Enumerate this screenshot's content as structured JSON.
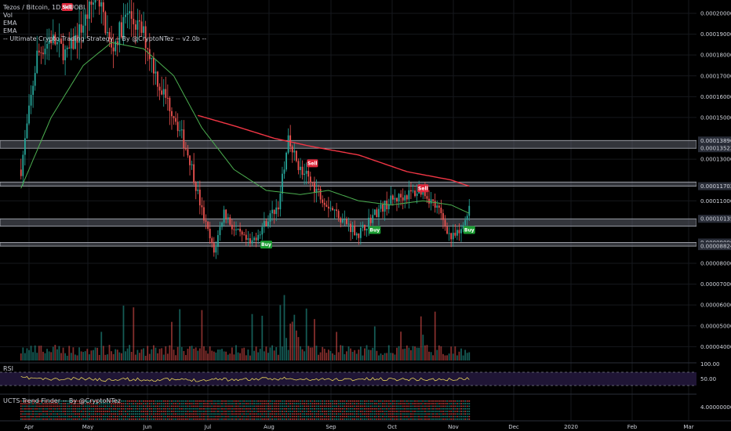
{
  "legend": {
    "symbol": "Tezos / Bitcoin, 1D, HUOBI",
    "vol": "Vol",
    "ema1": "EMA",
    "ema2": "EMA",
    "strategy": "-- Ultimate Crypto Trading Strategy -- By @CryptoNTez -- v2.0b --"
  },
  "rsi_label": "RSI",
  "trend_label": "UCTS Trend Finder -- By @CryptoNTez",
  "colors": {
    "up": "#26a69a",
    "down": "#ef5350",
    "ema_fast": "#4caf50",
    "ema_slow": "#f23645",
    "rsi": "#e7d25a",
    "rsi_band": "#1f1535",
    "zone": "#5d606b",
    "buy": "#1b9e32",
    "sell": "#e0283c"
  },
  "chart_data": {
    "type": "candlestick",
    "x_axis_labels": [
      "Apr",
      "May",
      "Jun",
      "Jul",
      "Aug",
      "Sep",
      "Oct",
      "Nov",
      "Dec",
      "2020",
      "Feb",
      "Mar"
    ],
    "y_axis_labels": [
      "0.00020000",
      "0.00019000",
      "0.00018000",
      "0.00017000",
      "0.00016000",
      "0.00015000",
      "0.00013896",
      "0.00013522",
      "0.00013000",
      "0.00011702",
      "0.00011000",
      "0.00010135",
      "0.00009000",
      "0.00008824",
      "0.00008000",
      "0.00007000",
      "0.00006000",
      "0.00005000",
      "0.00004000"
    ],
    "y_range": [
      3.5e-05,
      0.000205
    ],
    "price_path": [
      {
        "date": "Mar 28",
        "price": 0.000125
      },
      {
        "date": "Apr 5",
        "price": 0.00018
      },
      {
        "date": "Apr 12",
        "price": 0.000188
      },
      {
        "date": "Apr 20",
        "price": 0.00018
      },
      {
        "date": "Apr 28",
        "price": 0.000195
      },
      {
        "date": "May 5",
        "price": 0.00021
      },
      {
        "date": "May 12",
        "price": 0.000182
      },
      {
        "date": "May 20",
        "price": 0.0002
      },
      {
        "date": "May 28",
        "price": 0.00019
      },
      {
        "date": "Jun 5",
        "price": 0.000165
      },
      {
        "date": "Jun 12",
        "price": 0.000152
      },
      {
        "date": "Jun 20",
        "price": 0.00013
      },
      {
        "date": "Jun 26",
        "price": 0.000105
      },
      {
        "date": "Jul 2",
        "price": 8.5e-05
      },
      {
        "date": "Jul 7",
        "price": 0.000105
      },
      {
        "date": "Jul 12",
        "price": 9.6e-05
      },
      {
        "date": "Jul 20",
        "price": 8.9e-05
      },
      {
        "date": "Jul 28",
        "price": 0.0001
      },
      {
        "date": "Aug 3",
        "price": 0.000108
      },
      {
        "date": "Aug 8",
        "price": 0.000138
      },
      {
        "date": "Aug 14",
        "price": 0.000125
      },
      {
        "date": "Aug 20",
        "price": 0.000118
      },
      {
        "date": "Aug 28",
        "price": 0.000108
      },
      {
        "date": "Sep 5",
        "price": 0.0001
      },
      {
        "date": "Sep 12",
        "price": 9.4e-05
      },
      {
        "date": "Sep 20",
        "price": 0.000104
      },
      {
        "date": "Sep 28",
        "price": 0.00011
      },
      {
        "date": "Oct 6",
        "price": 0.000113
      },
      {
        "date": "Oct 14",
        "price": 0.000115
      },
      {
        "date": "Oct 22",
        "price": 0.000105
      },
      {
        "date": "Oct 28",
        "price": 9.2e-05
      },
      {
        "date": "Nov 2",
        "price": 9.5e-05
      },
      {
        "date": "Nov 6",
        "price": 0.000108
      }
    ],
    "ema_fast": [
      {
        "date": "Mar 28",
        "price": 0.000116
      },
      {
        "date": "Apr 12",
        "price": 0.00015
      },
      {
        "date": "Apr 28",
        "price": 0.000175
      },
      {
        "date": "May 12",
        "price": 0.000186
      },
      {
        "date": "May 28",
        "price": 0.000183
      },
      {
        "date": "Jun 12",
        "price": 0.00017
      },
      {
        "date": "Jun 26",
        "price": 0.000145
      },
      {
        "date": "Jul 12",
        "price": 0.000125
      },
      {
        "date": "Jul 28",
        "price": 0.000115
      },
      {
        "date": "Aug 14",
        "price": 0.000113
      },
      {
        "date": "Aug 28",
        "price": 0.000115
      },
      {
        "date": "Sep 12",
        "price": 0.00011
      },
      {
        "date": "Sep 28",
        "price": 0.000108
      },
      {
        "date": "Oct 14",
        "price": 0.00011
      },
      {
        "date": "Oct 28",
        "price": 0.000108
      },
      {
        "date": "Nov 6",
        "price": 0.000104
      }
    ],
    "ema_slow": [
      {
        "date": "Jun 24",
        "price": 0.000151
      },
      {
        "date": "Jul 12",
        "price": 0.000146
      },
      {
        "date": "Aug 1",
        "price": 0.00014
      },
      {
        "date": "Aug 20",
        "price": 0.000136
      },
      {
        "date": "Sep 12",
        "price": 0.000132
      },
      {
        "date": "Oct 6",
        "price": 0.000124
      },
      {
        "date": "Oct 28",
        "price": 0.00012
      },
      {
        "date": "Nov 6",
        "price": 0.000117
      }
    ],
    "zones": [
      {
        "top": 0.00013896,
        "bottom": 0.00013522
      },
      {
        "top": 0.00011902,
        "bottom": 0.00011702
      },
      {
        "top": 0.00010135,
        "bottom": 9.78e-05
      },
      {
        "top": 9e-05,
        "bottom": 8.824e-05
      }
    ],
    "signals": [
      {
        "type": "sell",
        "label": "Sell",
        "date": "Apr 20",
        "price": 0.000203
      },
      {
        "type": "buy",
        "label": "Buy",
        "date": "Jul 28",
        "price": 8.9e-05
      },
      {
        "type": "sell",
        "label": "Sell",
        "date": "Aug 20",
        "price": 0.000128
      },
      {
        "type": "buy",
        "label": "Buy",
        "date": "Sep 20",
        "price": 9.6e-05
      },
      {
        "type": "sell",
        "label": "Sell",
        "date": "Oct 14",
        "price": 0.000116
      },
      {
        "type": "buy",
        "label": "Buy",
        "date": "Nov 6",
        "price": 9.6e-05
      }
    ],
    "rsi_axis_labels": [
      "100.00",
      "50.00"
    ],
    "trend_axis_label": "4.00000000"
  }
}
